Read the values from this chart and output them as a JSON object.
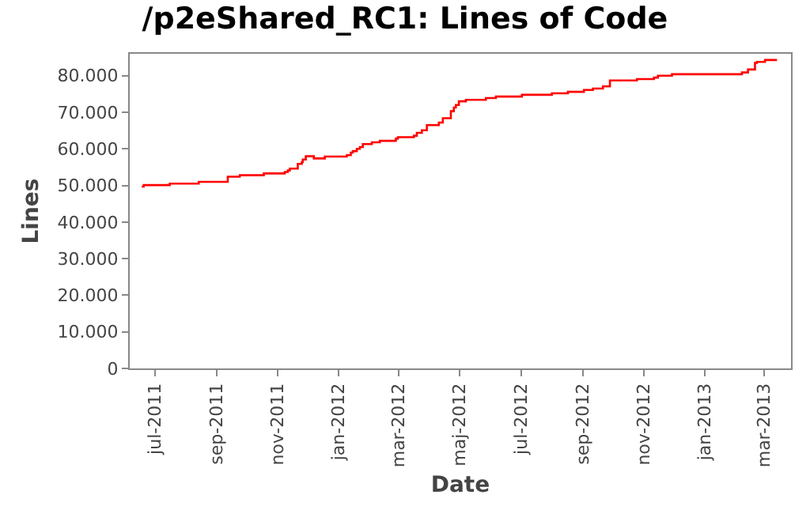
{
  "chart_data": {
    "type": "step",
    "title": "/p2eShared_RC1: Lines of Code",
    "xlabel": "Date",
    "ylabel": "Lines",
    "x": [
      "2011-06-18",
      "2011-06-20",
      "2011-07-16",
      "2011-08-14",
      "2011-09-12",
      "2011-09-24",
      "2011-10-18",
      "2011-11-08",
      "2011-11-11",
      "2011-11-13",
      "2011-11-21",
      "2011-11-25",
      "2011-11-26",
      "2011-11-29",
      "2011-12-07",
      "2011-12-18",
      "2012-01-09",
      "2012-01-13",
      "2012-01-15",
      "2012-01-19",
      "2012-01-22",
      "2012-01-25",
      "2012-02-03",
      "2012-02-11",
      "2012-02-27",
      "2012-02-29",
      "2012-03-16",
      "2012-03-19",
      "2012-03-24",
      "2012-03-29",
      "2012-04-10",
      "2012-04-14",
      "2012-04-22",
      "2012-04-25",
      "2012-04-27",
      "2012-04-30",
      "2012-05-07",
      "2012-05-27",
      "2012-06-06",
      "2012-07-02",
      "2012-08-01",
      "2012-08-17",
      "2012-09-02",
      "2012-09-11",
      "2012-09-21",
      "2012-09-28",
      "2012-10-25",
      "2012-11-11",
      "2012-11-15",
      "2012-11-29",
      "2013-02-07",
      "2013-02-13",
      "2013-02-20",
      "2013-02-22",
      "2013-03-02",
      "2013-03-14"
    ],
    "series": [
      {
        "color": "#ff0000",
        "values": [
          49700,
          50100,
          50500,
          51000,
          52400,
          52800,
          53300,
          53700,
          54100,
          54600,
          55900,
          56400,
          57100,
          58000,
          57400,
          57900,
          58300,
          59000,
          59400,
          60000,
          60500,
          61300,
          61800,
          62200,
          62800,
          63200,
          63600,
          64400,
          65100,
          66500,
          67200,
          68400,
          70300,
          71300,
          72000,
          73000,
          73400,
          73900,
          74300,
          74800,
          75200,
          75600,
          76100,
          76500,
          77100,
          78700,
          79100,
          79500,
          80000,
          80400,
          80900,
          81700,
          83500,
          83800,
          84300,
          84300
        ]
      }
    ],
    "xlim": [
      "2011-06-06",
      "2013-03-28"
    ],
    "xticks": [
      {
        "value": "2011-07-01",
        "label": "jul-2011"
      },
      {
        "value": "2011-09-01",
        "label": "sep-2011"
      },
      {
        "value": "2011-11-01",
        "label": "nov-2011"
      },
      {
        "value": "2012-01-01",
        "label": "jan-2012"
      },
      {
        "value": "2012-03-01",
        "label": "mar-2012"
      },
      {
        "value": "2012-05-01",
        "label": "maj-2012"
      },
      {
        "value": "2012-07-01",
        "label": "jul-2012"
      },
      {
        "value": "2012-09-01",
        "label": "sep-2012"
      },
      {
        "value": "2012-11-01",
        "label": "nov-2012"
      },
      {
        "value": "2013-01-01",
        "label": "jan-2013"
      },
      {
        "value": "2013-03-01",
        "label": "mar-2013"
      }
    ],
    "ylim": [
      0,
      86000
    ],
    "yticks": [
      {
        "value": 0,
        "label": "0"
      },
      {
        "value": 10000,
        "label": "10.000"
      },
      {
        "value": 20000,
        "label": "20.000"
      },
      {
        "value": 30000,
        "label": "30.000"
      },
      {
        "value": 40000,
        "label": "40.000"
      },
      {
        "value": 50000,
        "label": "50.000"
      },
      {
        "value": 60000,
        "label": "60.000"
      },
      {
        "value": 70000,
        "label": "70.000"
      },
      {
        "value": 80000,
        "label": "80.000"
      }
    ],
    "grid": false,
    "marker": "none",
    "line_style": "solid"
  }
}
